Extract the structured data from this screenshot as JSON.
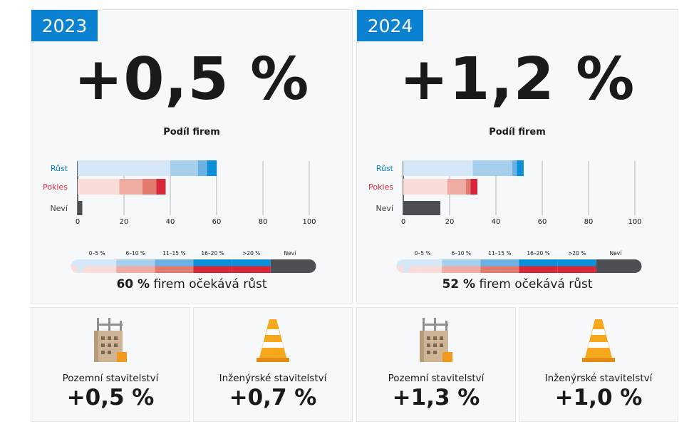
{
  "colors": {
    "accent": "#0a82d1",
    "growth": [
      "#d6e8f8",
      "#a6cfee",
      "#6cb1e4",
      "#0a8fd9"
    ],
    "decline": [
      "#fadcd8",
      "#eeaca2",
      "#e37a6e",
      "#d7283b"
    ],
    "unknown": "#4e4f54"
  },
  "panels": [
    {
      "year": "2023",
      "big_value": "+0,5 %",
      "subtitle": "Podíl firem",
      "summary_bold": "60 %",
      "summary_rest": "firem očekává růst",
      "sectors": [
        {
          "icon": "building-construction-icon",
          "label": "Pozemní stavitelství",
          "value": "+0,5 %"
        },
        {
          "icon": "traffic-cone-icon",
          "label": "Inženýrské stavitelství",
          "value": "+0,7 %"
        }
      ]
    },
    {
      "year": "2024",
      "big_value": "+1,2 %",
      "subtitle": "Podíl firem",
      "summary_bold": "52 %",
      "summary_rest": "firem očekává růst",
      "sectors": [
        {
          "icon": "building-construction-icon",
          "label": "Pozemní stavitelství",
          "value": "+1,3 %"
        },
        {
          "icon": "traffic-cone-icon",
          "label": "Inženýrské stavitelství",
          "value": "+1,0 %"
        }
      ]
    }
  ],
  "chart_data": [
    {
      "type": "bar",
      "orientation": "horizontal",
      "stacked": true,
      "title": "Podíl firem",
      "categories": [
        "Růst",
        "Pokles",
        "Neví"
      ],
      "xlim": [
        0,
        100
      ],
      "xticks": [
        0,
        20,
        40,
        60,
        80,
        100
      ],
      "series": [
        {
          "name": "0–5 %",
          "values": [
            40,
            18,
            0
          ]
        },
        {
          "name": "6–10 %",
          "values": [
            12,
            10,
            0
          ]
        },
        {
          "name": "11–15 %",
          "values": [
            4,
            6,
            0
          ]
        },
        {
          "name": "16–20 %",
          "values": [
            4,
            4,
            0
          ]
        },
        {
          "name": "Neví",
          "values": [
            0,
            0,
            2
          ]
        }
      ],
      "legend": [
        "0–5 %",
        "6–10 %",
        "11–15 %",
        "16–20 %",
        ">20 %",
        "Neví"
      ]
    },
    {
      "type": "bar",
      "orientation": "horizontal",
      "stacked": true,
      "title": "Podíl firem",
      "categories": [
        "Růst",
        "Pokles",
        "Neví"
      ],
      "xlim": [
        0,
        100
      ],
      "xticks": [
        0,
        20,
        40,
        60,
        80,
        100
      ],
      "series": [
        {
          "name": "0–5 %",
          "values": [
            30,
            19,
            0
          ]
        },
        {
          "name": "6–10 %",
          "values": [
            17,
            8,
            0
          ]
        },
        {
          "name": "11–15 %",
          "values": [
            2,
            2,
            0
          ]
        },
        {
          "name": "16–20 %",
          "values": [
            3,
            3,
            0
          ]
        },
        {
          "name": "Neví",
          "values": [
            0,
            0,
            16
          ]
        }
      ],
      "legend": [
        "0–5 %",
        "6–10 %",
        "11–15 %",
        "16–20 %",
        ">20 %",
        "Neví"
      ]
    }
  ]
}
